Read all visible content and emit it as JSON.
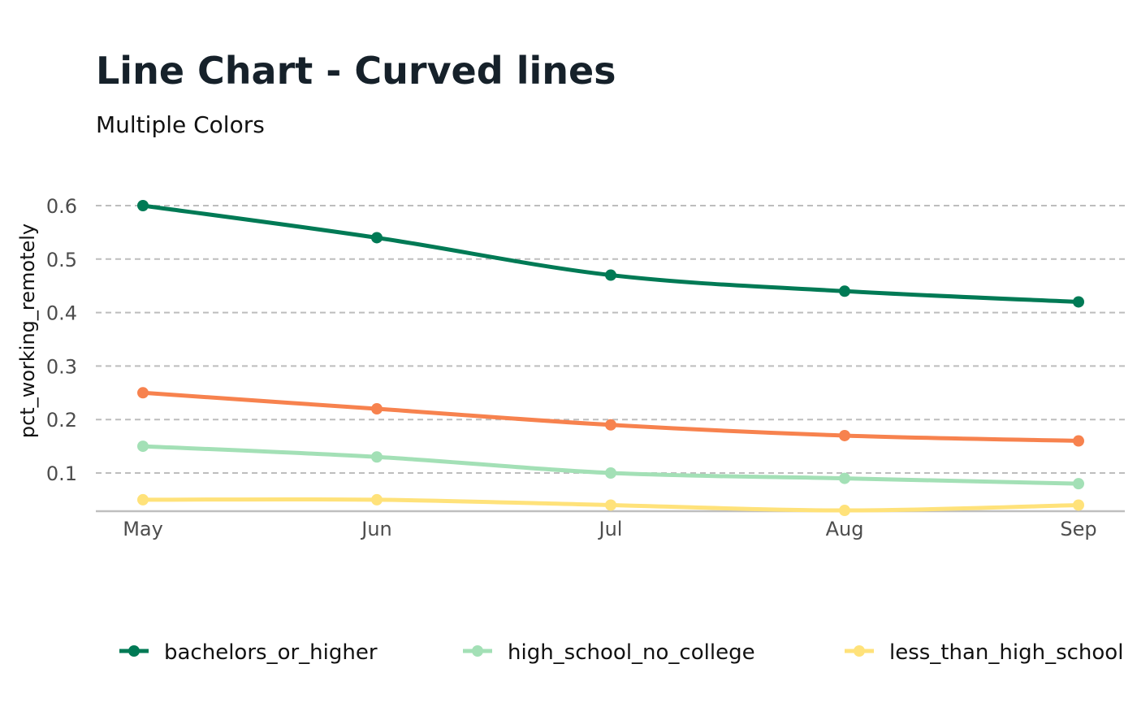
{
  "chart_data": {
    "type": "line",
    "title": "Line Chart - Curved lines",
    "subtitle": "Multiple Colors",
    "xlabel": "",
    "ylabel": "pct_working_remotely",
    "categories": [
      "May",
      "Jun",
      "Jul",
      "Aug",
      "Sep"
    ],
    "yticks": [
      0.1,
      0.2,
      0.3,
      0.4,
      0.5,
      0.6
    ],
    "yticklabels": [
      "0.1",
      "0.2",
      "0.3",
      "0.4",
      "0.5",
      "0.6"
    ],
    "ylim": [
      0.03,
      0.6
    ],
    "grid": true,
    "legend_position": "bottom",
    "curved": true,
    "series": [
      {
        "name": "bachelors_or_higher",
        "color": "#007a55",
        "values": [
          0.6,
          0.54,
          0.47,
          0.44,
          0.42
        ],
        "in_legend": true
      },
      {
        "name": "high_school_no_college",
        "color": "#a3e0b6",
        "values": [
          0.15,
          0.13,
          0.1,
          0.09,
          0.08
        ],
        "in_legend": true
      },
      {
        "name": "less_than_high_school",
        "color": "#ffe27a",
        "values": [
          0.05,
          0.05,
          0.04,
          0.03,
          0.04
        ],
        "in_legend": true
      },
      {
        "name": "",
        "color": "#f7824e",
        "values": [
          0.25,
          0.22,
          0.19,
          0.17,
          0.16
        ],
        "in_legend": false
      }
    ]
  }
}
